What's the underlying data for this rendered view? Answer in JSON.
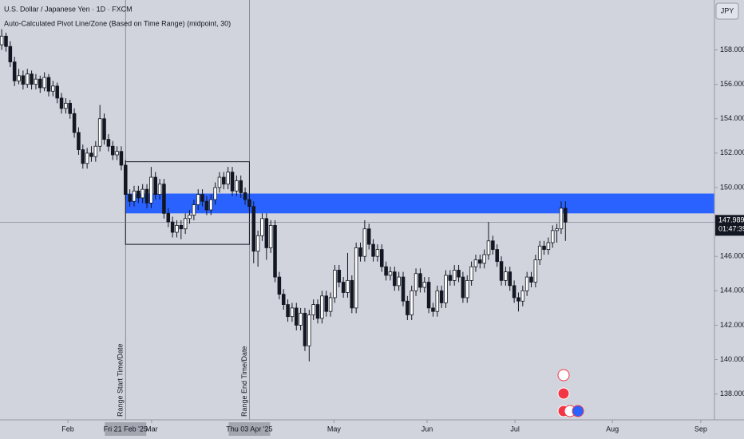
{
  "chart_data": {
    "type": "candlestick",
    "title": "U.S. Dollar / Japanese Yen · 1D · FXCM",
    "subtitle": "Auto-Calculated Pivot Line/Zone (Based on Time Range) (midpoint, 30)",
    "currency": "JPY",
    "up_color": "#ffffff",
    "down_color": "#131722",
    "zone_color": "#2962ff",
    "candles": [
      [
        158.3,
        159.2,
        158.0,
        158.8
      ],
      [
        158.8,
        159.0,
        157.9,
        158.2
      ],
      [
        158.2,
        158.5,
        157.0,
        157.3
      ],
      [
        157.3,
        157.6,
        155.9,
        156.2
      ],
      [
        156.2,
        156.9,
        156.0,
        156.5
      ],
      [
        156.5,
        156.8,
        155.7,
        156.0
      ],
      [
        156.0,
        156.9,
        155.8,
        156.6
      ],
      [
        156.6,
        156.8,
        155.7,
        156.0
      ],
      [
        156.0,
        156.6,
        155.7,
        156.3
      ],
      [
        156.3,
        156.5,
        155.5,
        155.8
      ],
      [
        155.8,
        156.7,
        155.6,
        156.4
      ],
      [
        156.4,
        156.6,
        155.3,
        155.6
      ],
      [
        155.6,
        156.2,
        155.3,
        155.9
      ],
      [
        155.9,
        156.1,
        154.9,
        155.2
      ],
      [
        155.2,
        155.5,
        154.3,
        154.6
      ],
      [
        154.6,
        155.2,
        154.3,
        154.9
      ],
      [
        154.9,
        155.1,
        154.0,
        154.3
      ],
      [
        154.3,
        154.6,
        152.9,
        153.2
      ],
      [
        153.2,
        153.5,
        151.9,
        152.2
      ],
      [
        152.2,
        152.5,
        151.1,
        151.4
      ],
      [
        151.4,
        152.3,
        151.1,
        152.0
      ],
      [
        152.0,
        152.4,
        151.5,
        151.8
      ],
      [
        151.8,
        152.7,
        151.5,
        152.4
      ],
      [
        152.4,
        154.8,
        152.1,
        154.0
      ],
      [
        154.0,
        154.3,
        152.5,
        152.8
      ],
      [
        152.8,
        153.1,
        152.1,
        152.4
      ],
      [
        152.4,
        152.7,
        151.6,
        151.9
      ],
      [
        151.9,
        152.4,
        151.6,
        152.1
      ],
      [
        152.1,
        152.4,
        151.0,
        151.3
      ],
      [
        151.3,
        151.6,
        149.3,
        149.6
      ],
      [
        149.6,
        149.9,
        148.9,
        149.2
      ],
      [
        149.2,
        150.1,
        148.9,
        149.8
      ],
      [
        149.8,
        150.1,
        149.1,
        149.4
      ],
      [
        149.4,
        150.2,
        149.1,
        149.9
      ],
      [
        149.9,
        150.2,
        148.8,
        149.1
      ],
      [
        149.1,
        151.2,
        148.8,
        150.6
      ],
      [
        150.6,
        150.9,
        149.3,
        149.6
      ],
      [
        149.6,
        150.5,
        149.3,
        150.2
      ],
      [
        150.2,
        150.5,
        148.2,
        148.5
      ],
      [
        148.5,
        148.8,
        147.7,
        148.0
      ],
      [
        148.0,
        148.3,
        147.1,
        147.4
      ],
      [
        147.4,
        148.1,
        147.1,
        147.8
      ],
      [
        147.8,
        148.1,
        147.0,
        147.6
      ],
      [
        147.6,
        148.5,
        147.3,
        148.2
      ],
      [
        148.2,
        148.7,
        147.9,
        148.4
      ],
      [
        148.4,
        149.3,
        148.1,
        149.0
      ],
      [
        149.0,
        149.9,
        148.7,
        149.6
      ],
      [
        149.6,
        149.9,
        148.9,
        149.2
      ],
      [
        149.2,
        149.5,
        148.4,
        148.7
      ],
      [
        148.7,
        149.6,
        148.4,
        149.3
      ],
      [
        149.3,
        150.3,
        149.0,
        150.0
      ],
      [
        150.0,
        150.9,
        149.7,
        150.6
      ],
      [
        150.6,
        150.9,
        149.9,
        150.2
      ],
      [
        150.2,
        151.2,
        149.9,
        150.9
      ],
      [
        150.9,
        151.2,
        149.5,
        149.8
      ],
      [
        149.8,
        150.7,
        149.5,
        150.4
      ],
      [
        150.4,
        150.7,
        149.4,
        149.7
      ],
      [
        149.7,
        150.0,
        149.0,
        149.3
      ],
      [
        149.3,
        149.6,
        148.6,
        148.9
      ],
      [
        148.9,
        149.2,
        145.6,
        146.3
      ],
      [
        146.3,
        147.5,
        145.4,
        147.2
      ],
      [
        147.2,
        148.5,
        146.9,
        148.2
      ],
      [
        148.2,
        148.5,
        145.8,
        146.5
      ],
      [
        146.5,
        148.1,
        146.2,
        147.8
      ],
      [
        147.8,
        148.1,
        144.5,
        144.8
      ],
      [
        144.8,
        145.1,
        143.5,
        143.8
      ],
      [
        143.8,
        144.1,
        142.9,
        143.2
      ],
      [
        143.2,
        143.5,
        142.2,
        142.5
      ],
      [
        142.5,
        143.3,
        142.2,
        143.0
      ],
      [
        143.0,
        143.3,
        141.7,
        142.0
      ],
      [
        142.0,
        143.0,
        141.7,
        142.7
      ],
      [
        142.7,
        143.0,
        140.5,
        140.8
      ],
      [
        140.8,
        142.9,
        139.9,
        142.6
      ],
      [
        142.6,
        143.5,
        142.3,
        143.2
      ],
      [
        143.2,
        143.5,
        142.1,
        142.4
      ],
      [
        142.4,
        144.0,
        142.1,
        143.7
      ],
      [
        143.7,
        144.0,
        142.5,
        142.8
      ],
      [
        142.8,
        143.9,
        142.5,
        143.6
      ],
      [
        143.6,
        145.5,
        143.3,
        145.2
      ],
      [
        145.2,
        145.5,
        144.2,
        144.5
      ],
      [
        144.5,
        144.8,
        143.6,
        143.9
      ],
      [
        143.9,
        146.2,
        143.6,
        144.6
      ],
      [
        144.6,
        144.9,
        142.7,
        143.0
      ],
      [
        143.0,
        146.8,
        142.7,
        146.5
      ],
      [
        146.5,
        146.8,
        145.7,
        146.0
      ],
      [
        146.0,
        148.1,
        145.7,
        147.6
      ],
      [
        147.6,
        147.9,
        146.4,
        146.7
      ],
      [
        146.7,
        147.0,
        145.7,
        146.0
      ],
      [
        146.0,
        146.7,
        145.7,
        146.4
      ],
      [
        146.4,
        146.7,
        145.1,
        145.4
      ],
      [
        145.4,
        145.7,
        144.6,
        144.9
      ],
      [
        144.9,
        145.4,
        144.6,
        145.1
      ],
      [
        145.1,
        145.4,
        144.0,
        144.3
      ],
      [
        144.3,
        145.1,
        144.0,
        144.8
      ],
      [
        144.8,
        145.1,
        143.1,
        143.4
      ],
      [
        143.4,
        143.7,
        142.3,
        142.6
      ],
      [
        142.6,
        144.3,
        142.3,
        144.0
      ],
      [
        144.0,
        145.3,
        143.7,
        145.0
      ],
      [
        145.0,
        145.3,
        143.9,
        144.2
      ],
      [
        144.2,
        144.8,
        143.9,
        144.5
      ],
      [
        144.5,
        144.8,
        142.7,
        143.0
      ],
      [
        143.0,
        143.3,
        142.5,
        142.8
      ],
      [
        142.8,
        144.3,
        142.5,
        144.0
      ],
      [
        144.0,
        144.3,
        143.0,
        143.3
      ],
      [
        143.3,
        145.2,
        143.0,
        144.9
      ],
      [
        144.9,
        145.2,
        144.3,
        144.6
      ],
      [
        144.6,
        145.5,
        144.3,
        145.2
      ],
      [
        145.2,
        145.5,
        144.5,
        144.8
      ],
      [
        144.8,
        145.1,
        143.3,
        143.6
      ],
      [
        143.6,
        144.9,
        143.3,
        144.6
      ],
      [
        144.6,
        145.7,
        144.3,
        145.4
      ],
      [
        145.4,
        146.1,
        145.1,
        145.8
      ],
      [
        145.8,
        146.1,
        145.3,
        145.6
      ],
      [
        145.6,
        146.4,
        145.3,
        146.1
      ],
      [
        146.1,
        148.0,
        145.8,
        146.9
      ],
      [
        146.9,
        147.2,
        146.1,
        146.4
      ],
      [
        146.4,
        146.7,
        145.4,
        145.7
      ],
      [
        145.7,
        146.0,
        144.3,
        144.6
      ],
      [
        144.6,
        145.4,
        144.3,
        145.1
      ],
      [
        145.1,
        145.4,
        144.0,
        144.3
      ],
      [
        144.3,
        144.6,
        143.3,
        143.6
      ],
      [
        143.6,
        143.9,
        142.8,
        143.4
      ],
      [
        143.4,
        144.3,
        143.1,
        144.0
      ],
      [
        144.0,
        145.1,
        143.7,
        144.8
      ],
      [
        144.8,
        145.1,
        144.2,
        144.5
      ],
      [
        144.5,
        146.1,
        144.2,
        145.8
      ],
      [
        145.8,
        146.9,
        145.5,
        146.6
      ],
      [
        146.6,
        146.9,
        146.1,
        146.4
      ],
      [
        146.4,
        147.1,
        146.1,
        146.8
      ],
      [
        146.8,
        147.8,
        146.5,
        147.5
      ],
      [
        147.5,
        147.9,
        146.8,
        147.6
      ],
      [
        147.6,
        149.2,
        147.3,
        148.8
      ],
      [
        148.8,
        149.2,
        146.9,
        147.989
      ]
    ],
    "xlim": [
      -0.4,
      166.9
    ],
    "xticks": [
      {
        "value": 15.5,
        "label": "Feb"
      },
      {
        "value": 35.1,
        "label": "Mar"
      },
      {
        "value": 77.8,
        "label": "May"
      },
      {
        "value": 99.6,
        "label": "Jun"
      },
      {
        "value": 120.2,
        "label": "Jul"
      },
      {
        "value": 143,
        "label": "Aug"
      },
      {
        "value": 163.7,
        "label": "Sep"
      }
    ],
    "ylim": [
      136.5,
      160.9
    ],
    "yticks": [
      {
        "value": 138,
        "label": "138.000"
      },
      {
        "value": 140,
        "label": "140.000"
      },
      {
        "value": 142,
        "label": "142.000"
      },
      {
        "value": 144,
        "label": "144.000"
      },
      {
        "value": 146,
        "label": "146.000"
      },
      {
        "value": 148,
        "label": "148.000"
      },
      {
        "value": 150,
        "label": "150.000"
      },
      {
        "value": 152,
        "label": "152.000"
      },
      {
        "value": 154,
        "label": "154.000"
      },
      {
        "value": 156,
        "label": "156.000"
      },
      {
        "value": 158,
        "label": "158.000"
      }
    ],
    "range_start": {
      "value": 29,
      "label": "Fri 21 Feb '25",
      "line_label": "Range Start Time/Date"
    },
    "range_end": {
      "value": 58,
      "label": "Thu 03 Apr '25",
      "line_label": "Range End Time/Date"
    },
    "range_box": {
      "top": 151.5,
      "bottom": 146.7
    },
    "zone": {
      "top": 149.65,
      "bottom": 148.5
    },
    "last_price": 147.989,
    "countdown": "01:47:39"
  }
}
